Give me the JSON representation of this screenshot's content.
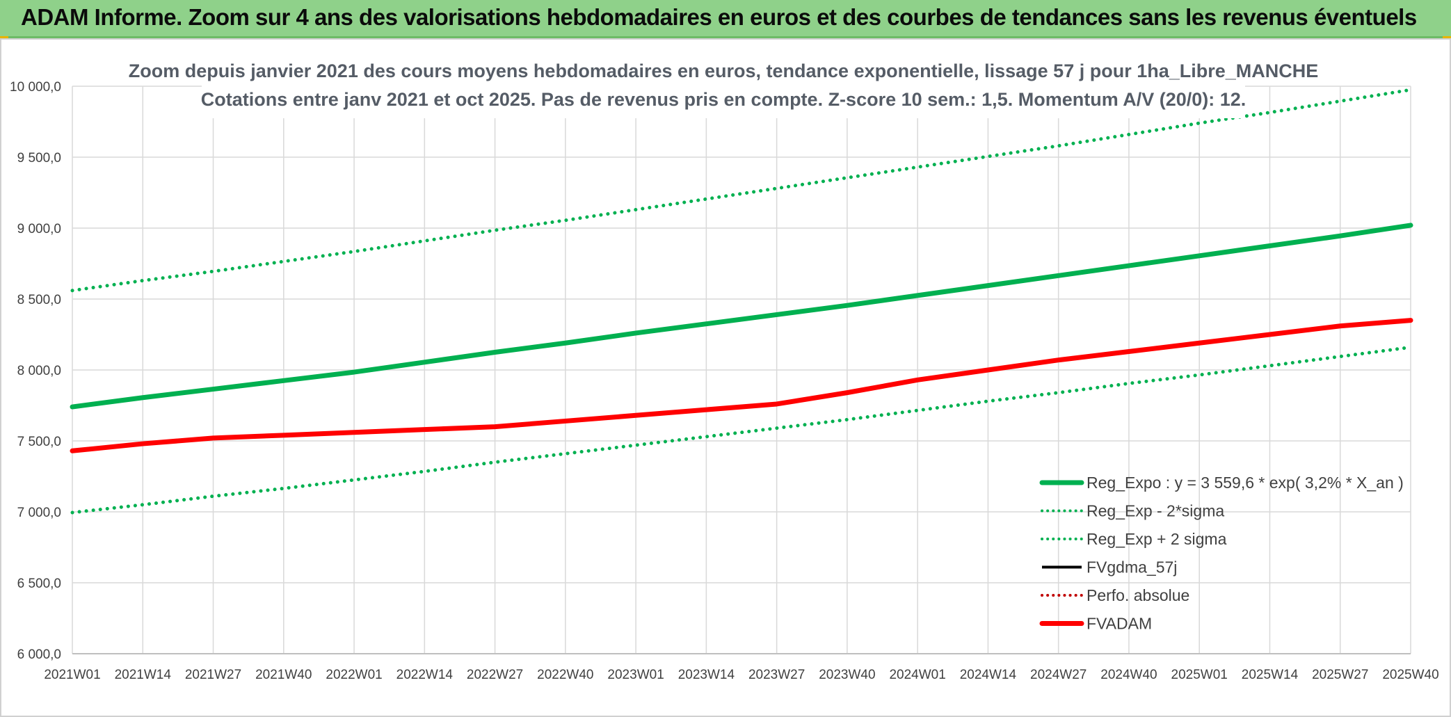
{
  "banner": {
    "title": "ADAM Informe. Zoom sur 4 ans des valorisations hebdomadaires en euros et des courbes de tendances sans les revenus éventuels"
  },
  "colors": {
    "banner": "#8fd18a",
    "trend": "#00b050",
    "fvadam": "#ff0000",
    "fvgdma": "#000000",
    "perfo": "#c00000"
  },
  "chart_data": {
    "type": "line",
    "title_lines": [
      "Zoom depuis janvier 2021 des cours moyens hebdomadaires en euros, tendance exponentielle, lissage 57 j pour 1ha_Libre_MANCHE",
      "Cotations entre janv 2021 et oct 2025. Pas de revenus pris en compte. Z-score 10 sem.: 1,5. Momentum A/V (20/0): 12."
    ],
    "ylim": [
      6000,
      10000
    ],
    "y_ticks": [
      6000,
      6500,
      7000,
      7500,
      8000,
      8500,
      9000,
      9500,
      10000
    ],
    "y_tick_labels": [
      "6 000,0",
      "6 500,0",
      "7 000,0",
      "7 500,0",
      "8 000,0",
      "8 500,0",
      "9 000,0",
      "9 500,0",
      "10 000,0"
    ],
    "x_tick_labels": [
      "2021W01",
      "2021W14",
      "2021W27",
      "2021W40",
      "2022W01",
      "2022W14",
      "2022W27",
      "2022W40",
      "2023W01",
      "2023W14",
      "2023W27",
      "2023W40",
      "2024W01",
      "2024W14",
      "2024W27",
      "2024W40",
      "2025W01",
      "2025W14",
      "2025W27",
      "2025W40"
    ],
    "grid": true,
    "legend_position": "bottom-right",
    "series": [
      {
        "name": "Reg_Expo : y = 3 559,6 * exp( 3,2% *  X_an )",
        "style": "solid-thick",
        "color": "#00b050",
        "values": [
          7740,
          7805,
          7865,
          7925,
          7985,
          8055,
          8125,
          8190,
          8260,
          8325,
          8390,
          8455,
          8525,
          8595,
          8665,
          8735,
          8805,
          8875,
          8945,
          9020
        ]
      },
      {
        "name": "Reg_Exp - 2*sigma",
        "style": "dotted",
        "color": "#00b050",
        "values": [
          6995,
          7050,
          7110,
          7165,
          7225,
          7285,
          7350,
          7410,
          7470,
          7530,
          7590,
          7650,
          7715,
          7780,
          7840,
          7905,
          7965,
          8030,
          8095,
          8160
        ]
      },
      {
        "name": "Reg_Exp + 2 sigma",
        "style": "dotted",
        "color": "#00b050",
        "values": [
          8560,
          8630,
          8695,
          8765,
          8835,
          8910,
          8985,
          9055,
          9130,
          9205,
          9280,
          9355,
          9430,
          9505,
          9580,
          9660,
          9740,
          9815,
          9895,
          9975
        ]
      },
      {
        "name": "FVgdma_57j",
        "style": "solid",
        "color": "#000000",
        "values": []
      },
      {
        "name": "Perfo. absolue",
        "style": "dotted",
        "color": "#c00000",
        "values": []
      },
      {
        "name": "FVADAM",
        "style": "solid-thick",
        "color": "#ff0000",
        "values": [
          7430,
          7480,
          7520,
          7540,
          7560,
          7580,
          7600,
          7640,
          7680,
          7720,
          7760,
          7840,
          7930,
          8000,
          8070,
          8130,
          8190,
          8250,
          8310,
          8350
        ]
      }
    ]
  }
}
